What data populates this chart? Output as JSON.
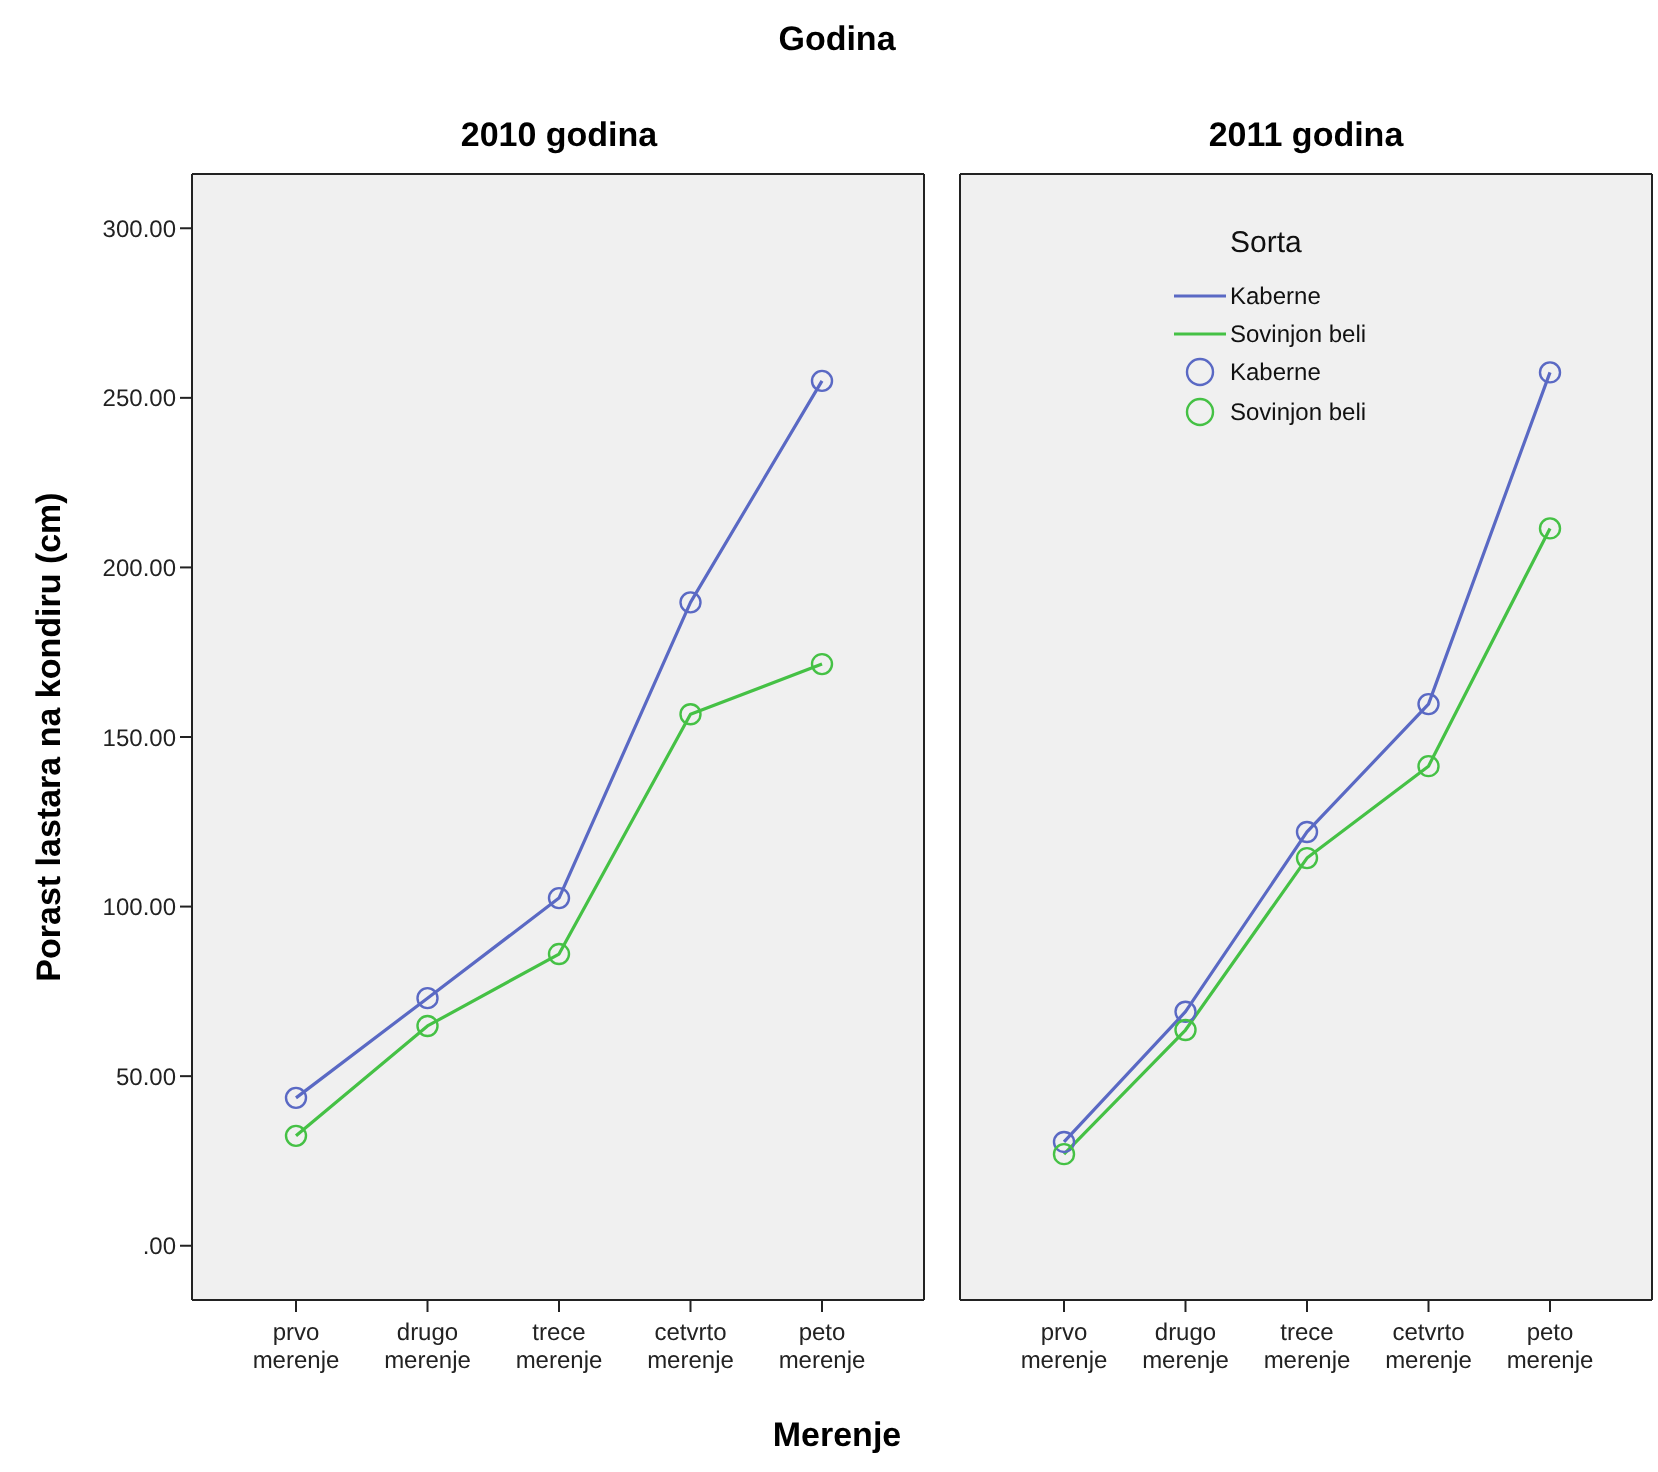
{
  "chart_data": [
    {
      "type": "line",
      "title": "2010 godina",
      "annotations": [
        "Godina"
      ],
      "xlabel": "Merenje",
      "ylabel": "Porast lastara na kondiru (cm)",
      "categories": [
        "prvo merenje",
        "drugo merenje",
        "trece merenje",
        "cetvrto merenje",
        "peto merenje"
      ],
      "series": [
        {
          "color": "#5a69c4",
          "values": [
            43.6,
            73,
            102.5,
            189.7,
            255
          ]
        },
        {
          "color": "#45c145",
          "values": [
            32.4,
            64.8,
            86,
            156.7,
            171.5
          ]
        }
      ],
      "ylim": [
        -16,
        316
      ],
      "yticks": [
        {
          "value": 0,
          "label": ".00"
        },
        {
          "value": 50,
          "label": "50.00"
        },
        {
          "value": 100,
          "label": "100.00"
        },
        {
          "value": 150,
          "label": "150.00"
        },
        {
          "value": 200,
          "label": "200.00"
        },
        {
          "value": 250,
          "label": "250.00"
        },
        {
          "value": 300,
          "label": "300.00"
        }
      ],
      "marker": "circle",
      "line_style": "solid",
      "grid": false,
      "legend": false
    },
    {
      "type": "line",
      "title": "2011 godina",
      "legend_title": "Sorta",
      "categories": [
        "prvo merenje",
        "drugo merenje",
        "trece merenje",
        "cetvrto merenje",
        "peto merenje"
      ],
      "series": [
        {
          "name": "Kaberne",
          "color": "#5a69c4",
          "values": [
            30.6,
            69,
            122,
            159.7,
            257.5
          ]
        },
        {
          "name": "Sovinjon beli",
          "color": "#45c145",
          "values": [
            27,
            63.6,
            114.3,
            141.4,
            211.5
          ]
        }
      ],
      "ylim": [
        -16,
        316
      ],
      "tick_labels": "x",
      "marker": "circle",
      "line_style": "solid",
      "grid": false,
      "legend": "top"
    }
  ]
}
